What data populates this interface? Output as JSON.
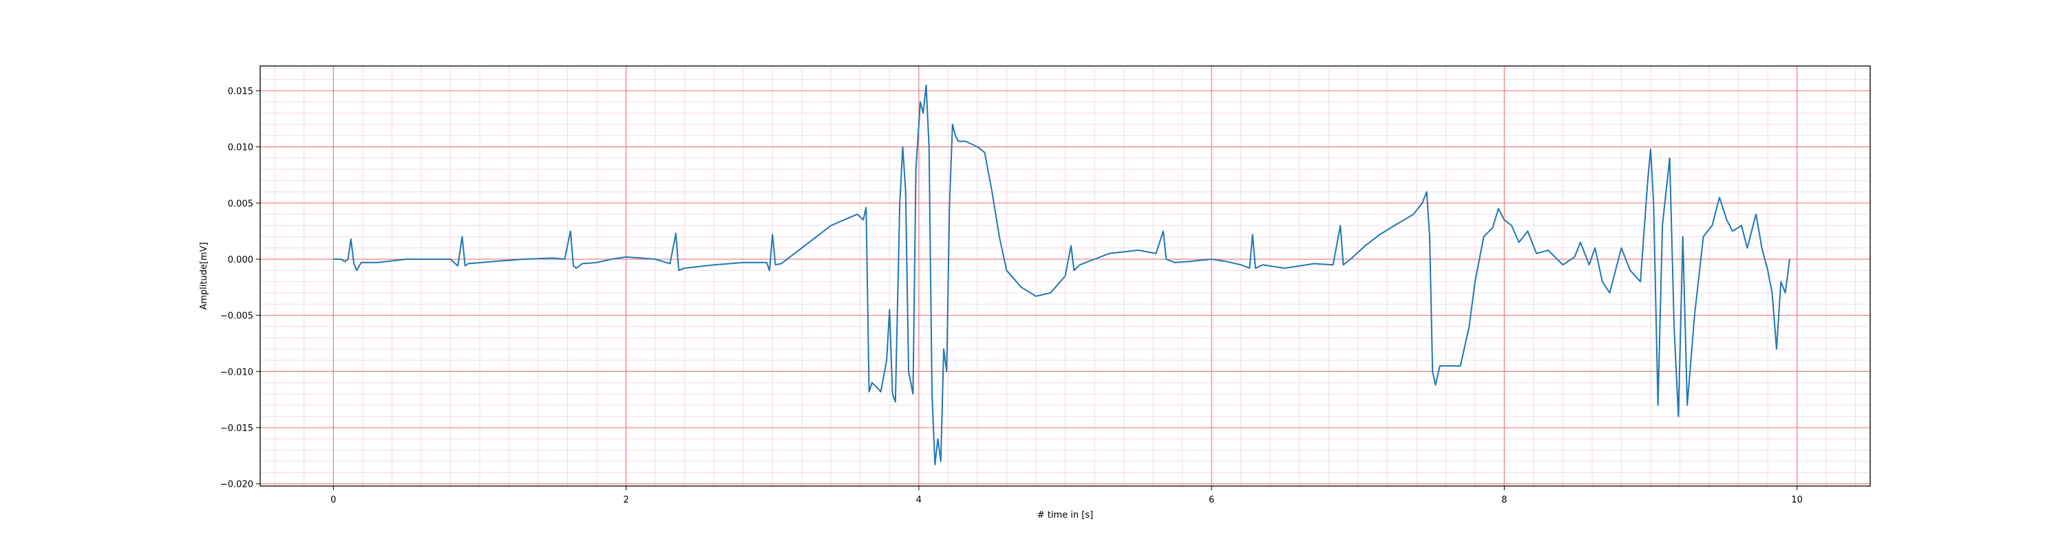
{
  "chart_data": {
    "type": "line",
    "title": "",
    "xlabel": "# time in [s]",
    "ylabel": "Amplitude[mV]",
    "xlim": [
      -0.5,
      10.5
    ],
    "ylim": [
      -0.0202,
      0.0172
    ],
    "x_ticks": [
      0,
      2,
      4,
      6,
      8,
      10
    ],
    "x_tick_labels": [
      "0",
      "2",
      "4",
      "6",
      "8",
      "10"
    ],
    "y_ticks": [
      -0.02,
      -0.015,
      -0.01,
      -0.005,
      0.0,
      0.005,
      0.01,
      0.015
    ],
    "y_tick_labels": [
      "−0.020",
      "−0.015",
      "−0.010",
      "−0.005",
      "0.000",
      "0.005",
      "0.010",
      "0.015"
    ],
    "grid": {
      "major": true,
      "minor": true,
      "major_x_step": 2,
      "minor_x_step": 0.2,
      "minor_y_step": 0.001
    },
    "colors": {
      "line": "#1f77b4",
      "major_grid": "#f08080",
      "minor_grid": "#f6d9e6"
    },
    "series": [
      {
        "name": "",
        "points": [
          [
            0.0,
            0.0
          ],
          [
            0.05,
            0.0
          ],
          [
            0.08,
            -0.0002
          ],
          [
            0.1,
            0.0
          ],
          [
            0.12,
            0.0018
          ],
          [
            0.14,
            -0.0004
          ],
          [
            0.16,
            -0.001
          ],
          [
            0.19,
            -0.0003
          ],
          [
            0.3,
            -0.0003
          ],
          [
            0.5,
            0.0
          ],
          [
            0.7,
            0.0
          ],
          [
            0.8,
            0.0
          ],
          [
            0.85,
            -0.0006
          ],
          [
            0.88,
            0.002
          ],
          [
            0.9,
            -0.0006
          ],
          [
            0.92,
            -0.0004
          ],
          [
            1.1,
            -0.0002
          ],
          [
            1.3,
            0.0
          ],
          [
            1.5,
            0.0001
          ],
          [
            1.58,
            0.0
          ],
          [
            1.62,
            0.0025
          ],
          [
            1.64,
            -0.0006
          ],
          [
            1.66,
            -0.0008
          ],
          [
            1.7,
            -0.0004
          ],
          [
            1.8,
            -0.0003
          ],
          [
            1.9,
            0.0
          ],
          [
            2.0,
            0.0002
          ],
          [
            2.2,
            0.0
          ],
          [
            2.3,
            -0.0004
          ],
          [
            2.34,
            0.0023
          ],
          [
            2.36,
            -0.001
          ],
          [
            2.4,
            -0.0008
          ],
          [
            2.6,
            -0.0005
          ],
          [
            2.8,
            -0.0003
          ],
          [
            2.96,
            -0.0003
          ],
          [
            2.98,
            -0.001
          ],
          [
            3.0,
            0.0022
          ],
          [
            3.02,
            -0.0005
          ],
          [
            3.06,
            -0.0004
          ],
          [
            3.2,
            0.001
          ],
          [
            3.4,
            0.003
          ],
          [
            3.58,
            0.004
          ],
          [
            3.62,
            0.0035
          ],
          [
            3.64,
            0.0046
          ],
          [
            3.66,
            -0.0118
          ],
          [
            3.68,
            -0.011
          ],
          [
            3.72,
            -0.0115
          ],
          [
            3.74,
            -0.0118
          ],
          [
            3.78,
            -0.009
          ],
          [
            3.8,
            -0.0045
          ],
          [
            3.82,
            -0.012
          ],
          [
            3.84,
            -0.0127
          ],
          [
            3.87,
            0.005
          ],
          [
            3.89,
            0.01
          ],
          [
            3.91,
            0.006
          ],
          [
            3.93,
            -0.01
          ],
          [
            3.96,
            -0.012
          ],
          [
            3.98,
            0.008
          ],
          [
            4.01,
            0.014
          ],
          [
            4.03,
            0.013
          ],
          [
            4.05,
            0.0155
          ],
          [
            4.07,
            0.01
          ],
          [
            4.09,
            -0.012
          ],
          [
            4.11,
            -0.0183
          ],
          [
            4.13,
            -0.016
          ],
          [
            4.15,
            -0.018
          ],
          [
            4.17,
            -0.008
          ],
          [
            4.19,
            -0.01
          ],
          [
            4.21,
            0.005
          ],
          [
            4.23,
            0.012
          ],
          [
            4.25,
            0.011
          ],
          [
            4.27,
            0.0105
          ],
          [
            4.32,
            0.0105
          ],
          [
            4.4,
            0.01
          ],
          [
            4.45,
            0.0095
          ],
          [
            4.5,
            0.006
          ],
          [
            4.55,
            0.002
          ],
          [
            4.6,
            -0.001
          ],
          [
            4.7,
            -0.0025
          ],
          [
            4.8,
            -0.0033
          ],
          [
            4.9,
            -0.003
          ],
          [
            5.0,
            -0.0015
          ],
          [
            5.04,
            0.0012
          ],
          [
            5.06,
            -0.001
          ],
          [
            5.1,
            -0.0005
          ],
          [
            5.2,
            0.0
          ],
          [
            5.3,
            0.0005
          ],
          [
            5.5,
            0.0008
          ],
          [
            5.62,
            0.0005
          ],
          [
            5.67,
            0.0025
          ],
          [
            5.69,
            0.0
          ],
          [
            5.75,
            -0.0003
          ],
          [
            5.85,
            -0.0002
          ],
          [
            6.0,
            0.0
          ],
          [
            6.1,
            -0.0002
          ],
          [
            6.2,
            -0.0005
          ],
          [
            6.26,
            -0.0008
          ],
          [
            6.28,
            0.0022
          ],
          [
            6.3,
            -0.0008
          ],
          [
            6.35,
            -0.0005
          ],
          [
            6.5,
            -0.0008
          ],
          [
            6.7,
            -0.0004
          ],
          [
            6.83,
            -0.0005
          ],
          [
            6.88,
            0.003
          ],
          [
            6.9,
            -0.0005
          ],
          [
            6.95,
            0.0
          ],
          [
            7.05,
            0.0012
          ],
          [
            7.15,
            0.0022
          ],
          [
            7.25,
            0.003
          ],
          [
            7.38,
            0.004
          ],
          [
            7.44,
            0.005
          ],
          [
            7.47,
            0.006
          ],
          [
            7.49,
            0.002
          ],
          [
            7.51,
            -0.01
          ],
          [
            7.53,
            -0.0112
          ],
          [
            7.56,
            -0.0095
          ],
          [
            7.7,
            -0.0095
          ],
          [
            7.76,
            -0.006
          ],
          [
            7.8,
            -0.002
          ],
          [
            7.86,
            0.002
          ],
          [
            7.92,
            0.0028
          ],
          [
            7.96,
            0.0045
          ],
          [
            8.0,
            0.0035
          ],
          [
            8.05,
            0.003
          ],
          [
            8.1,
            0.0015
          ],
          [
            8.16,
            0.0025
          ],
          [
            8.22,
            0.0005
          ],
          [
            8.3,
            0.0008
          ],
          [
            8.4,
            -0.0005
          ],
          [
            8.48,
            0.0002
          ],
          [
            8.52,
            0.0015
          ],
          [
            8.58,
            -0.0005
          ],
          [
            8.62,
            0.001
          ],
          [
            8.67,
            -0.002
          ],
          [
            8.72,
            -0.003
          ],
          [
            8.8,
            0.001
          ],
          [
            8.86,
            -0.001
          ],
          [
            8.93,
            -0.002
          ],
          [
            8.98,
            0.007
          ],
          [
            9.0,
            0.0098
          ],
          [
            9.02,
            0.005
          ],
          [
            9.05,
            -0.013
          ],
          [
            9.08,
            0.003
          ],
          [
            9.13,
            0.009
          ],
          [
            9.16,
            -0.006
          ],
          [
            9.19,
            -0.014
          ],
          [
            9.22,
            0.002
          ],
          [
            9.25,
            -0.013
          ],
          [
            9.3,
            -0.005
          ],
          [
            9.36,
            0.002
          ],
          [
            9.42,
            0.003
          ],
          [
            9.47,
            0.0055
          ],
          [
            9.52,
            0.0035
          ],
          [
            9.56,
            0.0025
          ],
          [
            9.62,
            0.003
          ],
          [
            9.66,
            0.001
          ],
          [
            9.72,
            0.004
          ],
          [
            9.76,
            0.001
          ],
          [
            9.8,
            -0.001
          ],
          [
            9.83,
            -0.003
          ],
          [
            9.86,
            -0.008
          ],
          [
            9.89,
            -0.002
          ],
          [
            9.92,
            -0.003
          ],
          [
            9.95,
            0.0
          ]
        ]
      }
    ]
  }
}
